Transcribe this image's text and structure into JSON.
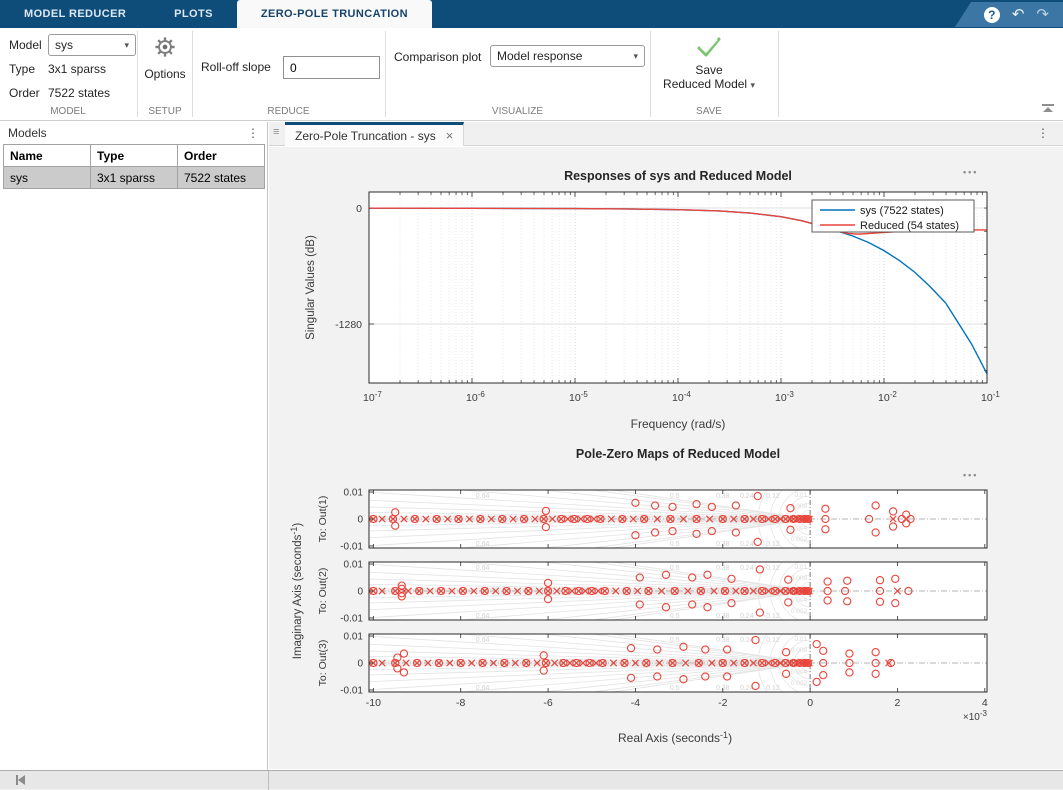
{
  "titlebar": {
    "tabs": [
      {
        "id": "model-reducer",
        "label": "MODEL REDUCER",
        "active": false
      },
      {
        "id": "plots",
        "label": "PLOTS",
        "active": false
      },
      {
        "id": "zero-pole-truncation",
        "label": "ZERO-POLE TRUNCATION",
        "active": true
      }
    ]
  },
  "icons": {
    "help": "?",
    "undo": "↶",
    "redo": "↷",
    "menu_dots": "⋮",
    "close": "×",
    "grip": "≡",
    "caret": "▾",
    "more": "•••"
  },
  "ribbon": {
    "model": {
      "label": "Model",
      "value": "sys"
    },
    "type": {
      "label": "Type",
      "value": "3x1 sparss"
    },
    "order": {
      "label": "Order",
      "value": "7522 states"
    },
    "options_label": "Options",
    "rolloff": {
      "label": "Roll-off slope",
      "value": "0"
    },
    "comparison": {
      "label": "Comparison plot",
      "value": "Model response"
    },
    "save": {
      "line1": "Save",
      "line2": "Reduced Model"
    },
    "sections": {
      "model": "MODEL",
      "setup": "SETUP",
      "reduce": "REDUCE",
      "visualize": "VISUALIZE",
      "save": "SAVE"
    }
  },
  "models_panel": {
    "title": "Models",
    "columns": [
      "Name",
      "Type",
      "Order"
    ],
    "rows": [
      [
        "sys",
        "3x1 sparss",
        "7522 states"
      ]
    ]
  },
  "document": {
    "tab_label": "Zero-Pole Truncation - sys"
  },
  "chart_data": [
    {
      "type": "line",
      "title": "Responses of sys and Reduced Model",
      "xlabel": "Frequency (rad/s)",
      "ylabel": "Singular Values (dB)",
      "x_scale": "log",
      "xtick_exponents": [
        -7,
        -6,
        -5,
        -4,
        -3,
        -2,
        -1
      ],
      "yticks": [
        0,
        -1280
      ],
      "xlim": [
        -7,
        -1
      ],
      "ylim": [
        -1931,
        177
      ],
      "grid": true,
      "legend_position": "northeast",
      "series": [
        {
          "name": "sys (7522 states)",
          "color": "#0072bd",
          "x": [
            -7,
            -6,
            -5,
            -4.5,
            -4,
            -3.6,
            -3.3,
            -3,
            -2.8,
            -2.6,
            -2.45,
            -2.3,
            -2.15,
            -2,
            -1.85,
            -1.7,
            -1.55,
            -1.4,
            -1.3,
            -1.15,
            -1
          ],
          "y": [
            -2,
            -3,
            -6,
            -10,
            -18,
            -32,
            -55,
            -95,
            -140,
            -200,
            -255,
            -310,
            -380,
            -470,
            -580,
            -710,
            -870,
            -1050,
            -1230,
            -1500,
            -1830
          ]
        },
        {
          "name": "Reduced (54 states)",
          "color": "#e8453c",
          "x": [
            -7,
            -6,
            -5,
            -4.5,
            -4,
            -3.6,
            -3.3,
            -3,
            -2.8,
            -2.6,
            -2.45,
            -2.35,
            -2.25,
            -2.1,
            -1.9,
            -1.7,
            -1.5,
            -1.3,
            -1.15,
            -1
          ],
          "y": [
            -2,
            -3,
            -6,
            -10,
            -18,
            -32,
            -55,
            -95,
            -140,
            -200,
            -255,
            -280,
            -288,
            -278,
            -262,
            -252,
            -246,
            -243,
            -242,
            -242
          ]
        }
      ]
    },
    {
      "type": "pzmap",
      "title": "Pole-Zero Maps of Reduced Model",
      "xlabel": "Real Axis (seconds^-1)",
      "ylabel": "Imaginary Axis  (seconds^-1)",
      "x_multiplier": "×10^-3",
      "xticks": [
        -10,
        -8,
        -6,
        -4,
        -2,
        0,
        2,
        4
      ],
      "xlim": [
        -10.1,
        4.05
      ],
      "yticks": [
        0.01,
        0,
        -0.01
      ],
      "ylim": [
        -0.0107,
        0.0107
      ],
      "marker_color": "#e8453c",
      "sgrid_labels": [
        {
          "t": "0.64",
          "u": -7.5
        },
        {
          "t": "0.5",
          "u": -3.1
        },
        {
          "t": "0.38",
          "u": -2.0
        },
        {
          "t": "0.24",
          "u": -1.45
        },
        {
          "t": "0.12",
          "u": -0.85
        }
      ],
      "freq_labels": [
        "0.01",
        "0.008",
        "0.006",
        "0.004",
        "0.002"
      ],
      "subplots": [
        {
          "label": "To: Out(1)",
          "poles": [
            -10,
            -9.8,
            -9.55,
            -9.3,
            -9.05,
            -8.8,
            -8.55,
            -8.3,
            -8.05,
            -7.8,
            -7.55,
            -7.3,
            -7.05,
            -6.8,
            -6.55,
            -6.3,
            -6.1,
            -5.9,
            -5.7,
            -5.55,
            -5.4,
            -5.25,
            -5.1,
            -4.95,
            -4.8,
            -4.55,
            -4.3,
            -4.05,
            -3.8,
            -3.5,
            -3.2,
            -2.9,
            -2.6,
            -2.3,
            -2.0,
            -1.75,
            -1.5,
            -1.3,
            -1.1,
            -0.95,
            -0.8,
            -0.68,
            -0.56,
            -0.46,
            -0.38,
            -0.3,
            -0.24,
            -0.18,
            -0.13,
            -0.09,
            -0.05,
            -0.02,
            1.9
          ],
          "zeros": [
            -10,
            -9.55,
            -9.05,
            -8.55,
            -8.05,
            -7.55,
            -7.05,
            -6.55,
            -6.1,
            -5.7,
            -5.4,
            -5.1,
            -4.8,
            -4.3,
            -3.8,
            -3.2,
            -2.6,
            -2.0,
            -1.5,
            -1.1,
            -0.8,
            -0.56,
            -0.38,
            -0.24,
            -0.13,
            -0.05,
            0.35,
            1.35,
            2.1,
            2.3
          ],
          "zero_pairs": [
            [
              -9.5,
              0.0025
            ],
            [
              -6.05,
              0.003
            ],
            [
              -4.0,
              0.006
            ],
            [
              -3.55,
              0.005
            ],
            [
              -3.15,
              0.0045
            ],
            [
              -2.6,
              0.0055
            ],
            [
              -2.25,
              0.0045
            ],
            [
              -1.7,
              0.005
            ],
            [
              -1.2,
              0.0085
            ],
            [
              -0.45,
              0.004
            ],
            [
              0.35,
              0.0038
            ],
            [
              1.5,
              0.005
            ],
            [
              1.9,
              0.0028
            ],
            [
              2.2,
              0.0016
            ]
          ]
        },
        {
          "label": "To: Out(2)",
          "poles": [
            -10,
            -9.8,
            -9.5,
            -9.2,
            -8.95,
            -8.7,
            -8.45,
            -8.2,
            -7.95,
            -7.7,
            -7.45,
            -7.2,
            -6.95,
            -6.7,
            -6.45,
            -6.2,
            -6.0,
            -5.8,
            -5.6,
            -5.45,
            -5.3,
            -5.15,
            -5.0,
            -4.85,
            -4.7,
            -4.45,
            -4.2,
            -3.95,
            -3.7,
            -3.4,
            -3.1,
            -2.8,
            -2.5,
            -2.2,
            -1.95,
            -1.7,
            -1.5,
            -1.3,
            -1.1,
            -0.95,
            -0.8,
            -0.68,
            -0.56,
            -0.46,
            -0.38,
            -0.3,
            -0.24,
            -0.18,
            -0.13,
            -0.09,
            -0.05,
            -0.02,
            2.0
          ],
          "zeros": [
            -10,
            -9.5,
            -8.95,
            -8.45,
            -7.95,
            -7.45,
            -6.95,
            -6.45,
            -6.0,
            -5.6,
            -5.3,
            -5.0,
            -4.7,
            -4.2,
            -3.7,
            -3.1,
            -2.5,
            -1.95,
            -1.5,
            -1.1,
            -0.8,
            -0.56,
            -0.38,
            -0.24,
            -0.13,
            -0.05,
            0.4,
            0.8,
            1.6,
            2.25
          ],
          "zero_pairs": [
            [
              -9.35,
              0.002
            ],
            [
              -9.35,
              0.0008
            ],
            [
              -6.0,
              0.003
            ],
            [
              -3.9,
              0.005
            ],
            [
              -3.3,
              0.006
            ],
            [
              -2.7,
              0.005
            ],
            [
              -2.35,
              0.006
            ],
            [
              -1.8,
              0.0045
            ],
            [
              -1.15,
              0.008
            ],
            [
              -0.5,
              0.0042
            ],
            [
              0.4,
              0.0035
            ],
            [
              0.85,
              0.0038
            ],
            [
              1.6,
              0.004
            ],
            [
              1.95,
              0.0045
            ]
          ]
        },
        {
          "label": "To: Out(3)",
          "poles": [
            -10,
            -9.8,
            -9.5,
            -9.25,
            -9.0,
            -8.75,
            -8.5,
            -8.25,
            -8.0,
            -7.75,
            -7.5,
            -7.25,
            -7.0,
            -6.75,
            -6.5,
            -6.25,
            -6.05,
            -5.85,
            -5.65,
            -5.5,
            -5.35,
            -5.2,
            -5.05,
            -4.9,
            -4.75,
            -4.5,
            -4.25,
            -4.0,
            -3.75,
            -3.45,
            -3.15,
            -2.85,
            -2.55,
            -2.25,
            -2.0,
            -1.75,
            -1.5,
            -1.3,
            -1.1,
            -0.95,
            -0.8,
            -0.68,
            -0.56,
            -0.46,
            -0.38,
            -0.3,
            -0.24,
            -0.18,
            -0.13,
            -0.09,
            -0.05,
            -0.02,
            1.8
          ],
          "zeros": [
            -10,
            -9.5,
            -9.0,
            -8.5,
            -8.0,
            -7.5,
            -7.0,
            -6.5,
            -6.05,
            -5.65,
            -5.35,
            -5.05,
            -4.75,
            -4.25,
            -3.75,
            -3.15,
            -2.55,
            -2.0,
            -1.5,
            -1.1,
            -0.8,
            -0.56,
            -0.38,
            -0.24,
            -0.13,
            -0.05,
            0.3,
            0.9,
            1.5,
            1.85
          ],
          "zero_pairs": [
            [
              -9.45,
              0.002
            ],
            [
              -9.3,
              0.0035
            ],
            [
              -6.1,
              0.0028
            ],
            [
              -4.1,
              0.0055
            ],
            [
              -3.5,
              0.005
            ],
            [
              -2.9,
              0.006
            ],
            [
              -2.4,
              0.005
            ],
            [
              -1.9,
              0.005
            ],
            [
              -1.25,
              0.0085
            ],
            [
              -0.55,
              0.004
            ],
            [
              0.15,
              0.007
            ],
            [
              0.3,
              0.0045
            ],
            [
              0.9,
              0.0035
            ],
            [
              1.5,
              0.004
            ]
          ]
        }
      ]
    }
  ]
}
